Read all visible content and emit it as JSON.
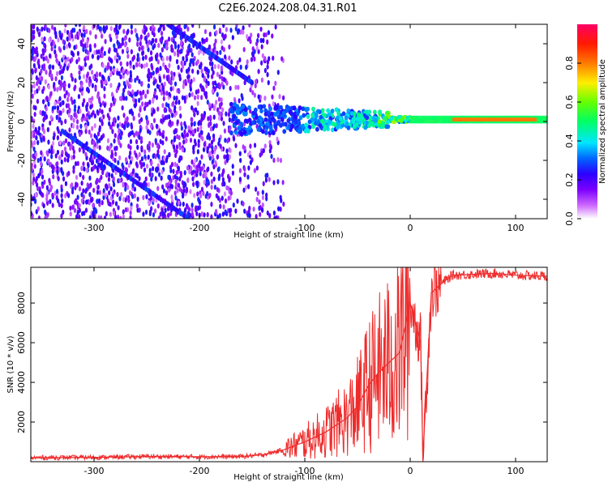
{
  "figure": {
    "title": "C2E6.2024.208.04.31.R01"
  },
  "chart_data": [
    {
      "type": "heatmap",
      "xlabel": "Height of straight line (km)",
      "ylabel": "Frequency (Hz)",
      "xlim": [
        -360,
        130
      ],
      "ylim": [
        -50,
        50
      ],
      "x_ticks": [
        -300,
        -200,
        -100,
        0,
        100
      ],
      "y_ticks": [
        -40,
        -20,
        0,
        20,
        40
      ],
      "colorbar": {
        "label": "Normalized spectral amplitude",
        "range": [
          0.0,
          1.0
        ],
        "ticks": [
          "0.0",
          "0.2",
          "0.4",
          "0.6",
          "0.8"
        ],
        "colors": [
          "#ffffff",
          "#cc66ff",
          "#7b00ff",
          "#2b00ff",
          "#0066ff",
          "#00e5ff",
          "#00ff66",
          "#66ff00",
          "#ffee00",
          "#ff7a00",
          "#ff1a00",
          "#ff0066"
        ]
      },
      "series": [
        {
          "description_points": [
            {
              "x": -340,
              "y": 30,
              "amp": 0.15
            },
            {
              "x": -300,
              "y": 10,
              "amp": 0.2
            },
            {
              "x": -260,
              "y": 0,
              "amp": 0.25
            },
            {
              "x": -200,
              "y": -10,
              "amp": 0.15
            },
            {
              "x": -160,
              "y": 3,
              "amp": 0.3
            },
            {
              "x": -130,
              "y": 5,
              "amp": 0.35
            },
            {
              "x": -100,
              "y": 0,
              "amp": 0.4
            },
            {
              "x": -80,
              "y": 2,
              "amp": 0.5
            },
            {
              "x": -50,
              "y": 1,
              "amp": 0.55
            },
            {
              "x": -20,
              "y": 1,
              "amp": 0.6
            },
            {
              "x": 0,
              "y": 2,
              "amp": 0.75
            },
            {
              "x": 40,
              "y": 1,
              "amp": 0.7
            },
            {
              "x": 80,
              "y": 1,
              "amp": 0.85
            },
            {
              "x": 100,
              "y": 1,
              "amp": 0.8
            },
            {
              "x": 130,
              "y": 1,
              "amp": 0.7
            }
          ]
        }
      ],
      "ridges": [
        {
          "x": [
            -230,
            -150
          ],
          "y": [
            50,
            20
          ]
        },
        {
          "x": [
            -330,
            -210
          ],
          "y": [
            -5,
            -50
          ]
        }
      ]
    },
    {
      "type": "line",
      "xlabel": "Height of straight line (km)",
      "ylabel": "SNR (10 * v/v)",
      "xlim": [
        -360,
        130
      ],
      "ylim": [
        0,
        9800
      ],
      "x_ticks": [
        -300,
        -200,
        -100,
        0,
        100
      ],
      "y_ticks": [
        2000,
        4000,
        6000,
        8000
      ],
      "color": "#ee2b2b",
      "series": [
        {
          "x": [
            -360,
            -300,
            -250,
            -200,
            -160,
            -140,
            -120,
            -100,
            -80,
            -60,
            -50,
            -40,
            -30,
            -20,
            -10,
            0,
            10,
            12,
            20,
            30,
            40,
            60,
            80,
            100,
            130
          ],
          "y": [
            200,
            220,
            260,
            250,
            260,
            350,
            600,
            1000,
            1500,
            2200,
            2800,
            3800,
            4500,
            5000,
            5500,
            8000,
            6000,
            200,
            8500,
            9000,
            9400,
            9450,
            9500,
            9400,
            9350
          ]
        }
      ]
    }
  ]
}
